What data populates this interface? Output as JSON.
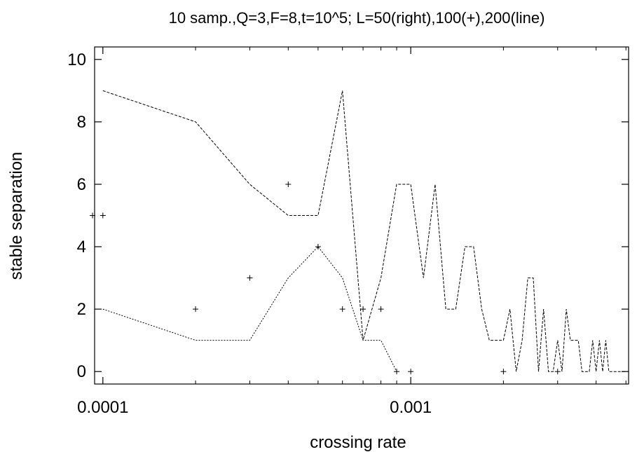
{
  "chart_data": {
    "type": "scatter",
    "title": "10 samp.,Q=3,F=8,t=10^5; L=50(right),100(+),200(line)",
    "xlabel": "crossing rate",
    "ylabel": "stable separation",
    "x_scale": "log",
    "xlim": [
      9.4e-05,
      0.0051
    ],
    "ylim": [
      -0.4,
      10.4
    ],
    "x_tick_labels": [
      {
        "value": 0.0001,
        "label": "0.0001"
      },
      {
        "value": 0.001,
        "label": "0.001"
      }
    ],
    "y_tick_labels": [
      {
        "value": 0,
        "label": "0"
      },
      {
        "value": 2,
        "label": "2"
      },
      {
        "value": 4,
        "label": "4"
      },
      {
        "value": 6,
        "label": "6"
      },
      {
        "value": 8,
        "label": "8"
      },
      {
        "value": 10,
        "label": "10"
      }
    ],
    "grid": false,
    "legend": "none",
    "series": [
      {
        "style": "plus-markers",
        "x": [
          0.0001,
          0.0002,
          0.0003,
          0.0004,
          0.0005,
          0.0006,
          0.0007,
          0.0008,
          0.0009,
          0.001,
          0.002,
          0.003
        ],
        "y": [
          5,
          2,
          3,
          6,
          4,
          2,
          2,
          2,
          0,
          0,
          0,
          0
        ]
      },
      {
        "style": "dashed-line",
        "x": [
          0.0001,
          0.0002,
          0.0003,
          0.0004,
          0.0005,
          0.0006,
          0.0007,
          0.0008,
          0.0009,
          0.001,
          0.0011,
          0.0012,
          0.0013,
          0.0014,
          0.0015,
          0.0016,
          0.0017,
          0.0018,
          0.0019,
          0.002,
          0.0021,
          0.0022,
          0.0023,
          0.0024,
          0.0025,
          0.0026,
          0.0027,
          0.0028,
          0.0029,
          0.003,
          0.0031,
          0.0032,
          0.0033,
          0.0034,
          0.0035,
          0.0036,
          0.0037,
          0.0038,
          0.0039,
          0.004,
          0.0041,
          0.0042,
          0.0043,
          0.0044,
          0.0045,
          0.0046,
          0.0047,
          0.0048,
          0.0049,
          0.005
        ],
        "y": [
          9,
          8,
          6,
          5,
          5,
          9,
          1,
          3,
          6,
          6,
          3,
          6,
          2,
          2,
          4,
          4,
          2,
          1,
          1,
          1,
          2,
          0,
          1,
          3,
          3,
          0,
          2,
          0,
          0,
          1,
          0,
          2,
          1,
          1,
          1,
          0,
          0,
          0,
          1,
          0,
          1,
          0,
          1,
          0,
          0,
          0,
          0,
          0,
          0,
          0
        ]
      },
      {
        "style": "dotted-line",
        "x": [
          0.0001,
          0.0002,
          0.0003,
          0.0004,
          0.0005,
          0.0006,
          0.0007,
          0.0008,
          0.0009
        ],
        "y": [
          2,
          1,
          1,
          3,
          4,
          3,
          1,
          1,
          0
        ]
      }
    ],
    "offscale_points": [
      {
        "x": 9e-05,
        "y": 5
      }
    ]
  }
}
